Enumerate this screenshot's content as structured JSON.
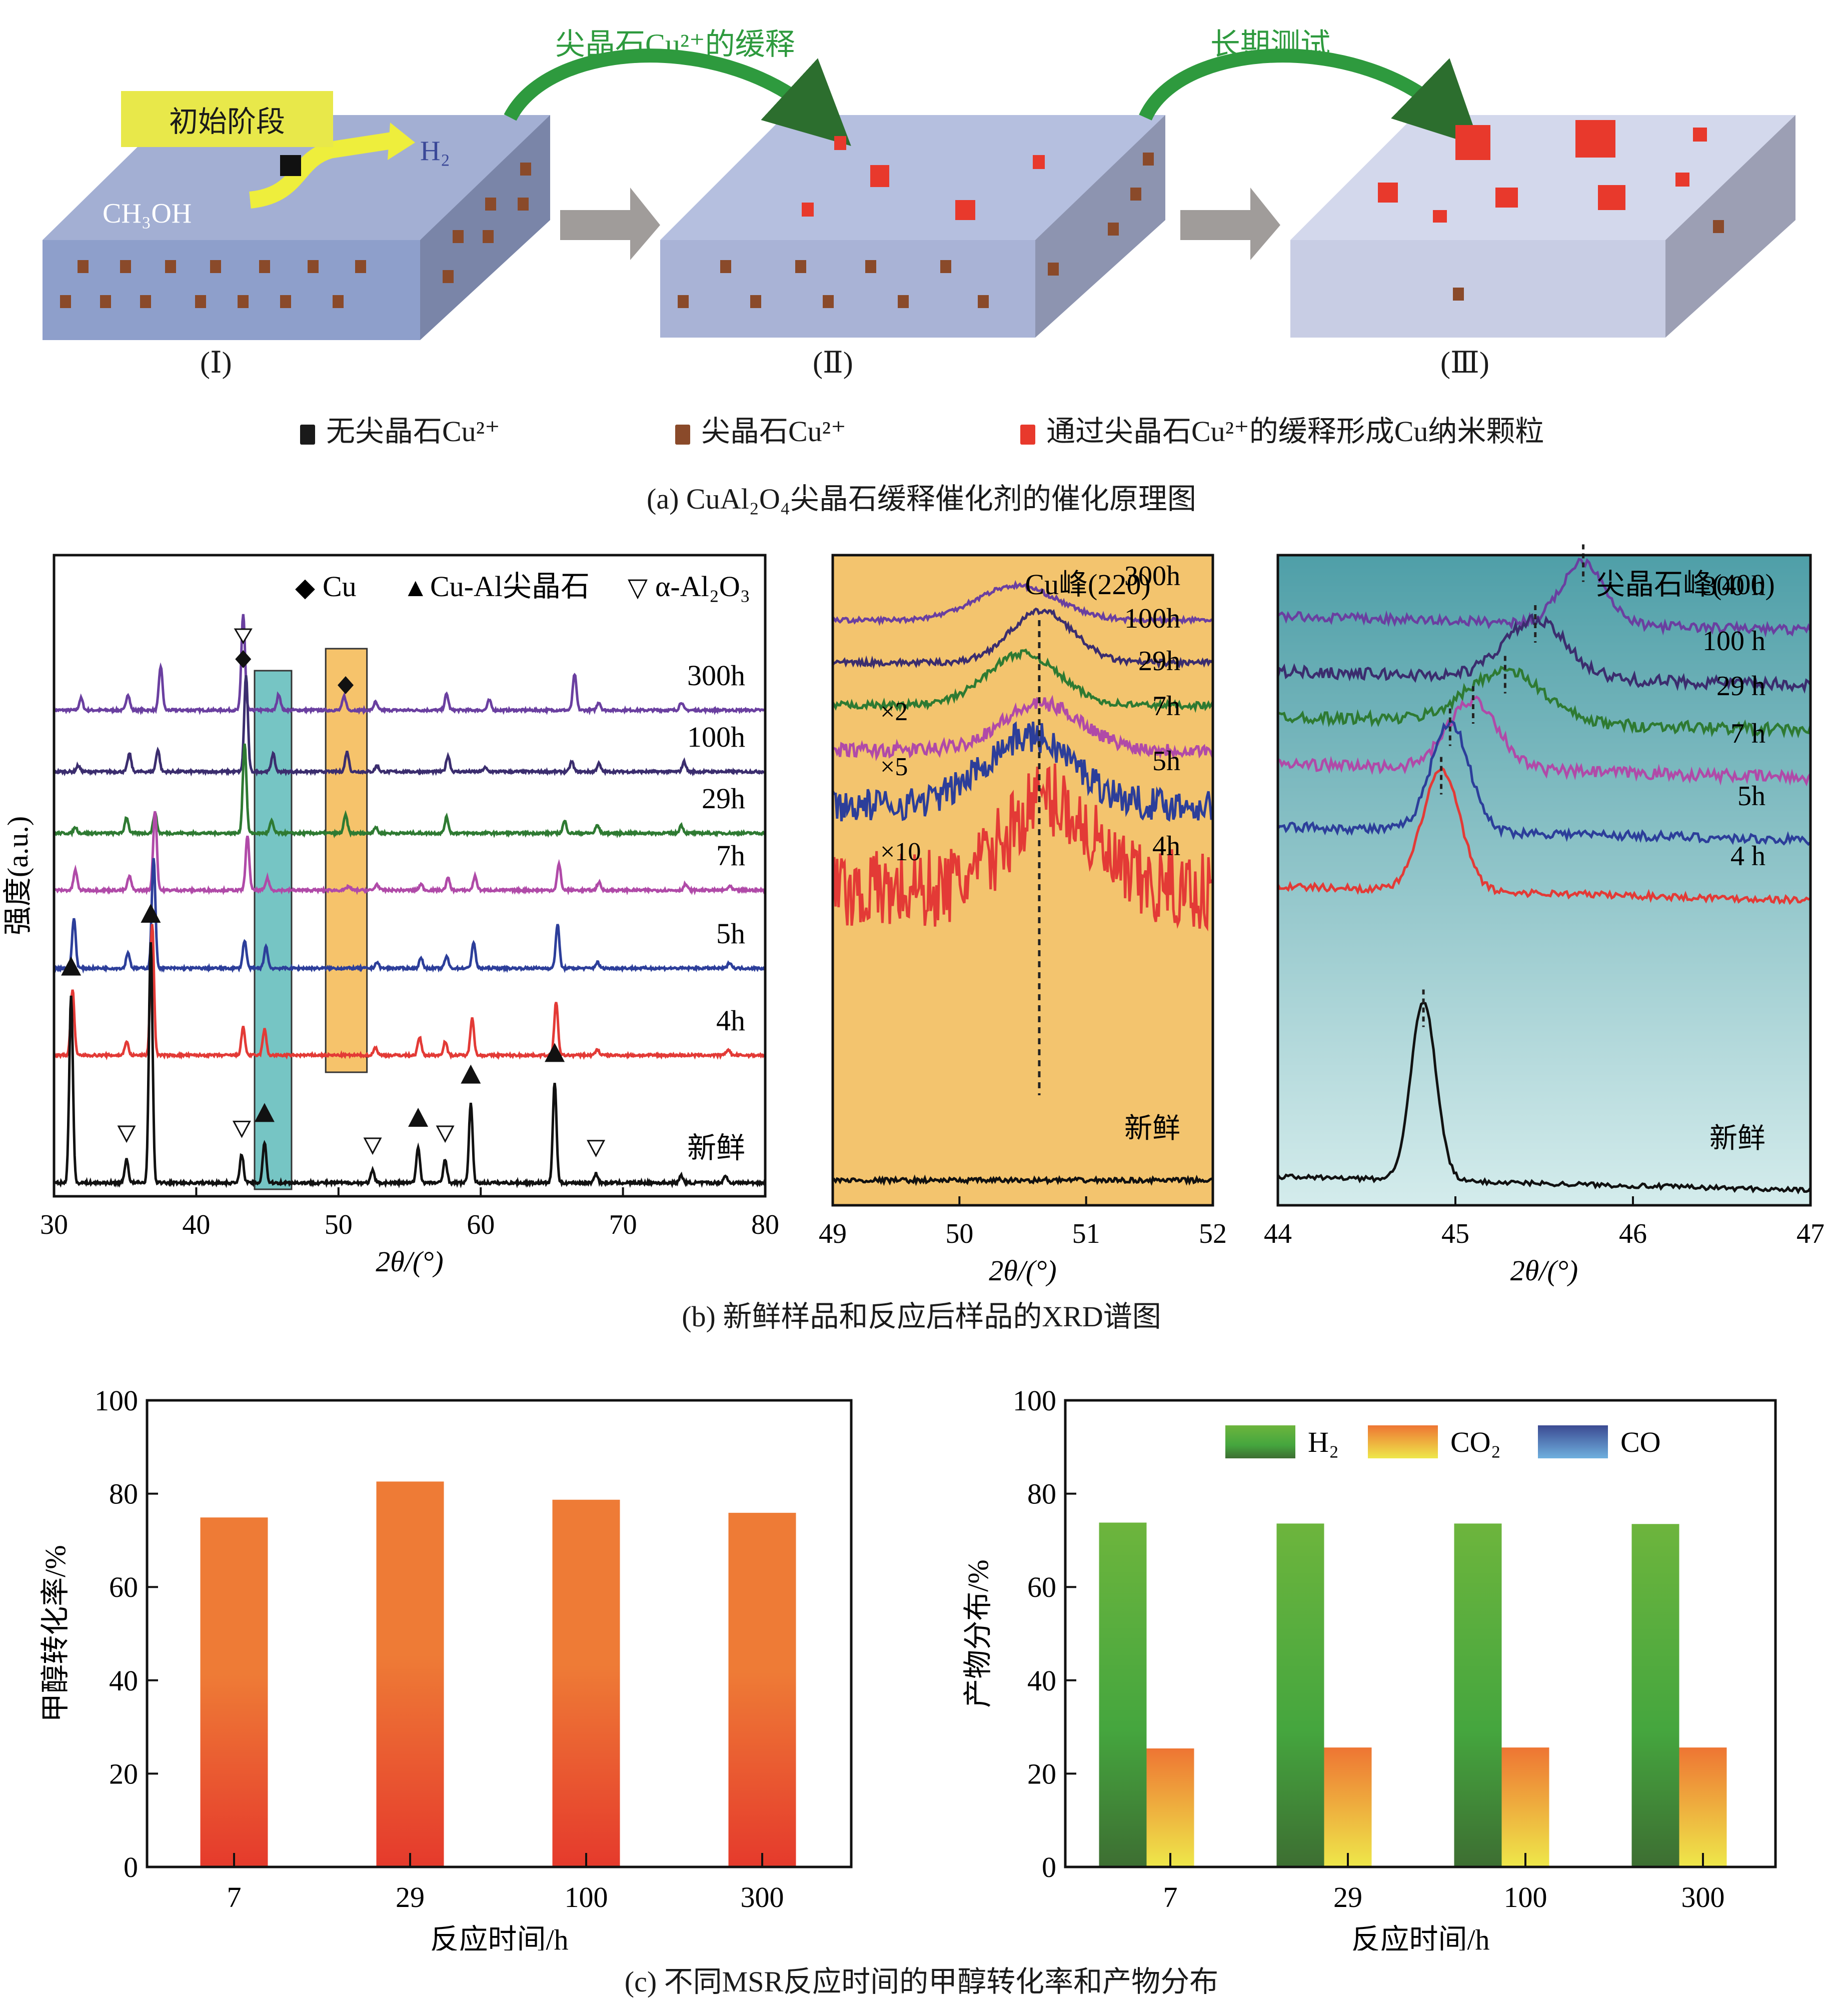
{
  "panel_a": {
    "initial_stage_label": "初始阶段",
    "ch3oh_label": "CH₃OH",
    "h2_label": "H₂",
    "transition_1_label": "尖晶石Cu²⁺的缓释",
    "transition_2_label": "长期测试",
    "stage_labels": [
      "(Ⅰ)",
      "(Ⅱ)",
      "(Ⅲ)"
    ],
    "legend": [
      {
        "label": "无尖晶石Cu²⁺",
        "color": "#1a1a1a"
      },
      {
        "label": "尖晶石Cu²⁺",
        "color": "#8a4a2a"
      },
      {
        "label": "通过尖晶石Cu²⁺的缓释形成Cu纳米颗粒",
        "color": "#e8392c"
      }
    ],
    "caption": "(a) CuAl₂O₄尖晶石缓释催化剂的催化原理图",
    "colors": {
      "block_top": "#a3afd3",
      "block_front": "#8e9fcb",
      "block_side": "#7a85a8",
      "block3_top": "#cdd3e8",
      "arrow_green": "#2e9a3e",
      "arrow_gray": "#9e9a98",
      "label_box": "#e8e84a"
    }
  },
  "panel_b_caption": "(b) 新鲜样品和反应后样品的XRD谱图",
  "panel_c_caption": "(c) 不同MSR反应时间的甲醇转化率和产物分布",
  "chart_data": [
    {
      "type": "line",
      "title": "",
      "xlabel": "2θ/(°)",
      "ylabel": "强度(a.u.)",
      "xlim": [
        30,
        80
      ],
      "xticks": [
        30,
        40,
        50,
        60,
        70,
        80
      ],
      "legend": [
        {
          "marker": "◆",
          "label": "Cu"
        },
        {
          "marker": "▲",
          "label": "Cu-Al尖晶石"
        },
        {
          "marker": "▽",
          "label": "α-Al₂O₃"
        }
      ],
      "legend_position": "top-right",
      "highlight_bands": [
        {
          "x_range": [
            44.1,
            46.7
          ],
          "color": "#76c5c4"
        },
        {
          "x_range": [
            49.1,
            52.0
          ],
          "color": "#f6c36b"
        }
      ],
      "series": [
        {
          "name": "300h",
          "color": "#6a3fa0",
          "peaks": [
            [
              31.9,
              0.06
            ],
            [
              35.2,
              0.08
            ],
            [
              37.5,
              0.22
            ],
            [
              43.3,
              0.48
            ],
            [
              45.8,
              0.08
            ],
            [
              50.4,
              0.07
            ],
            [
              52.6,
              0.04
            ],
            [
              57.6,
              0.08
            ],
            [
              60.6,
              0.05
            ],
            [
              66.6,
              0.18
            ],
            [
              68.3,
              0.04
            ],
            [
              74.1,
              0.04
            ]
          ]
        },
        {
          "name": "100h",
          "color": "#3b2d6e",
          "peaks": [
            [
              31.7,
              0.03
            ],
            [
              35.3,
              0.09
            ],
            [
              37.3,
              0.11
            ],
            [
              43.5,
              0.48
            ],
            [
              45.4,
              0.09
            ],
            [
              50.6,
              0.1
            ],
            [
              52.7,
              0.03
            ],
            [
              57.7,
              0.08
            ],
            [
              60.3,
              0.02
            ],
            [
              66.4,
              0.05
            ],
            [
              68.3,
              0.04
            ],
            [
              74.3,
              0.05
            ]
          ]
        },
        {
          "name": "29h",
          "color": "#2e7a32",
          "peaks": [
            [
              31.5,
              0.03
            ],
            [
              35.1,
              0.08
            ],
            [
              37.1,
              0.1
            ],
            [
              43.4,
              0.45
            ],
            [
              45.3,
              0.06
            ],
            [
              50.5,
              0.09
            ],
            [
              52.6,
              0.03
            ],
            [
              57.6,
              0.08
            ],
            [
              65.9,
              0.06
            ],
            [
              68.2,
              0.04
            ],
            [
              74.1,
              0.04
            ]
          ]
        },
        {
          "name": "7h",
          "color": "#b04aa8",
          "peaks": [
            [
              31.5,
              0.1
            ],
            [
              35.3,
              0.07
            ],
            [
              37.1,
              0.4
            ],
            [
              43.6,
              0.27
            ],
            [
              45.0,
              0.06
            ],
            [
              50.7,
              0.02
            ],
            [
              52.7,
              0.03
            ],
            [
              55.8,
              0.03
            ],
            [
              57.7,
              0.06
            ],
            [
              59.6,
              0.07
            ],
            [
              65.5,
              0.13
            ],
            [
              68.3,
              0.04
            ],
            [
              74.4,
              0.03
            ],
            [
              77.5,
              0.02
            ]
          ]
        },
        {
          "name": "5h",
          "color": "#2c3e9a",
          "peaks": [
            [
              31.4,
              0.25
            ],
            [
              35.2,
              0.08
            ],
            [
              37.0,
              0.55
            ],
            [
              43.4,
              0.14
            ],
            [
              44.9,
              0.11
            ],
            [
              52.7,
              0.03
            ],
            [
              55.8,
              0.05
            ],
            [
              57.6,
              0.06
            ],
            [
              59.5,
              0.13
            ],
            [
              65.4,
              0.22
            ],
            [
              68.2,
              0.03
            ],
            [
              77.5,
              0.03
            ]
          ]
        },
        {
          "name": "4h",
          "color": "#e33a36",
          "peaks": [
            [
              31.3,
              0.33
            ],
            [
              35.1,
              0.07
            ],
            [
              36.9,
              0.66
            ],
            [
              43.3,
              0.14
            ],
            [
              44.8,
              0.13
            ],
            [
              52.6,
              0.04
            ],
            [
              55.7,
              0.09
            ],
            [
              57.5,
              0.07
            ],
            [
              59.4,
              0.19
            ],
            [
              65.3,
              0.27
            ],
            [
              68.2,
              0.03
            ],
            [
              77.4,
              0.03
            ]
          ]
        },
        {
          "name": "新鲜",
          "color": "#111111",
          "peaks": [
            [
              31.2,
              0.78
            ],
            [
              35.1,
              0.1
            ],
            [
              36.8,
              1.0
            ],
            [
              43.2,
              0.12
            ],
            [
              44.8,
              0.17
            ],
            [
              52.4,
              0.05
            ],
            [
              55.6,
              0.15
            ],
            [
              57.5,
              0.1
            ],
            [
              59.3,
              0.33
            ],
            [
              65.2,
              0.42
            ],
            [
              68.1,
              0.04
            ],
            [
              74.1,
              0.03
            ],
            [
              77.2,
              0.03
            ]
          ]
        }
      ],
      "markers_fresh": {
        "spinel_triangle": [
          31.2,
          36.8,
          44.8,
          55.6,
          59.3,
          65.2
        ],
        "alumina_open_triangle": [
          35.1,
          43.2,
          52.4,
          57.5,
          68.1
        ]
      },
      "markers_300h": {
        "cu_diamond": [
          43.3,
          50.5
        ],
        "alumina_open_triangle": [
          43.3
        ]
      }
    },
    {
      "type": "line",
      "title": "Cu峰(220)",
      "xlabel": "2θ/(°)",
      "xlim": [
        49,
        52
      ],
      "xticks": [
        49,
        50,
        51,
        52
      ],
      "background": "#f3c46e",
      "reference_line_x": 50.63,
      "series": [
        {
          "name": "300h",
          "color": "#6a3fa0",
          "center": 50.45,
          "width": 0.45,
          "height": 0.3,
          "noise": 0.02,
          "multiplier": ""
        },
        {
          "name": "100h",
          "color": "#3b2d6e",
          "center": 50.65,
          "width": 0.35,
          "height": 0.45,
          "noise": 0.025,
          "multiplier": ""
        },
        {
          "name": "29h",
          "color": "#2e7a32",
          "center": 50.5,
          "width": 0.4,
          "height": 0.45,
          "noise": 0.03,
          "multiplier": ""
        },
        {
          "name": "7h",
          "color": "#b04aa8",
          "center": 50.65,
          "width": 0.45,
          "height": 0.4,
          "noise": 0.06,
          "multiplier": "×2"
        },
        {
          "name": "5h",
          "color": "#2c3e9a",
          "center": 50.55,
          "width": 0.5,
          "height": 0.6,
          "noise": 0.14,
          "multiplier": "×5"
        },
        {
          "name": "4h",
          "color": "#e33a36",
          "center": 50.7,
          "width": 0.45,
          "height": 0.8,
          "noise": 0.35,
          "multiplier": "×10"
        },
        {
          "name": "新鲜",
          "color": "#111111",
          "center": 50.6,
          "width": 0.3,
          "height": 0.0,
          "noise": 0.02,
          "multiplier": ""
        }
      ]
    },
    {
      "type": "line",
      "title": "尖晶石峰(400)",
      "xlabel": "2θ/(°)",
      "xlim": [
        44,
        47
      ],
      "xticks": [
        44,
        45,
        46,
        47
      ],
      "background_gradient": [
        "#4f9fa8",
        "#d4ecec"
      ],
      "series": [
        {
          "name": "300 h",
          "color": "#6a3fa0",
          "center": 45.72,
          "width": 0.17,
          "height": 0.55,
          "noise": 0.04
        },
        {
          "name": "100 h",
          "color": "#3b2d6e",
          "center": 45.45,
          "width": 0.25,
          "height": 0.5,
          "noise": 0.05
        },
        {
          "name": "29 h",
          "color": "#2e7a32",
          "center": 45.28,
          "width": 0.3,
          "height": 0.45,
          "noise": 0.05
        },
        {
          "name": "7 h",
          "color": "#b04aa8",
          "center": 45.1,
          "width": 0.2,
          "height": 0.6,
          "noise": 0.05
        },
        {
          "name": "5h",
          "color": "#2c3e9a",
          "center": 44.97,
          "width": 0.15,
          "height": 0.95,
          "noise": 0.04
        },
        {
          "name": "4 h",
          "color": "#e33a36",
          "center": 44.92,
          "width": 0.15,
          "height": 1.05,
          "noise": 0.03
        },
        {
          "name": "新鲜",
          "color": "#111111",
          "center": 44.82,
          "width": 0.1,
          "height": 1.55,
          "noise": 0.02
        }
      ]
    },
    {
      "type": "bar",
      "title": "",
      "categories": [
        "7",
        "29",
        "100",
        "300"
      ],
      "values": [
        74.9,
        82.6,
        78.7,
        75.9
      ],
      "xlabel": "反应时间/h",
      "ylabel": "甲醇转化率/%",
      "ylim": [
        0,
        100
      ],
      "yticks": [
        0,
        20,
        40,
        60,
        80,
        100
      ],
      "bar_gradient": [
        "#ee7b36",
        "#e53a2c"
      ]
    },
    {
      "type": "bar",
      "title": "",
      "categories": [
        "7",
        "29",
        "100",
        "300"
      ],
      "series": [
        {
          "name": "H₂",
          "values": [
            73.8,
            73.6,
            73.6,
            73.5
          ],
          "gradient": [
            "#6db53d",
            "#3d6e32"
          ]
        },
        {
          "name": "CO₂",
          "values": [
            25.4,
            25.6,
            25.6,
            25.6
          ],
          "gradient": [
            "#ee7533",
            "#eee84a"
          ]
        },
        {
          "name": "CO",
          "values": [
            0,
            0,
            0,
            0
          ],
          "gradient": [
            "#3b4a92",
            "#6fb0de"
          ]
        }
      ],
      "xlabel": "反应时间/h",
      "ylabel": "产物分布/%",
      "ylim": [
        0,
        100
      ],
      "yticks": [
        0,
        20,
        40,
        60,
        80,
        100
      ],
      "legend_position": "top-center"
    }
  ]
}
